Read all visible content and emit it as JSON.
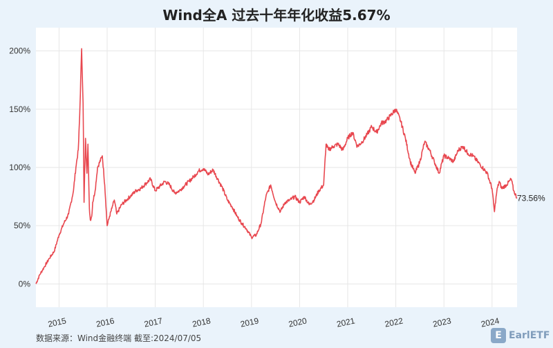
{
  "title": "Wind全A 过去十年年化收益5.67%",
  "footer": "数据来源：Wind金融终端 截至:2024/07/05",
  "logo": {
    "text": "EarlETF",
    "badge": "E"
  },
  "colors": {
    "line": "#e8474f",
    "background": "#eaf3fb",
    "plot": "#ffffff",
    "grid": "#e6e6e6"
  },
  "chart_data": {
    "type": "line",
    "title": "Wind全A 过去十年年化收益5.67%",
    "ylim": [
      -0.2,
      2.2
    ],
    "xlim": [
      2014.52,
      2024.52
    ],
    "y_ticks": [
      0,
      0.5,
      1.0,
      1.5,
      2.0
    ],
    "y_tick_labels": [
      "0%",
      "50%",
      "100%",
      "150%",
      "200%"
    ],
    "x_ticks": [
      2015,
      2016,
      2017,
      2018,
      2019,
      2020,
      2021,
      2022,
      2023,
      2024
    ],
    "x_tick_labels": [
      "2015",
      "2016",
      "2017",
      "2018",
      "2019",
      "2020",
      "2021",
      "2022",
      "2023",
      "2024"
    ],
    "end_label": "73.56%",
    "grid": true,
    "series": [
      {
        "x": [
          2014.52,
          2014.6,
          2014.7,
          2014.8,
          2014.9,
          2015.0,
          2015.1,
          2015.2,
          2015.3,
          2015.35,
          2015.4,
          2015.43,
          2015.45,
          2015.47,
          2015.5,
          2015.52,
          2015.55,
          2015.58,
          2015.6,
          2015.63,
          2015.65,
          2015.68,
          2015.7,
          2015.75,
          2015.8,
          2015.9,
          2015.95,
          2016.0,
          2016.05,
          2016.1,
          2016.15,
          2016.2,
          2016.3,
          2016.4,
          2016.5,
          2016.6,
          2016.7,
          2016.8,
          2016.9,
          2017.0,
          2017.1,
          2017.2,
          2017.3,
          2017.4,
          2017.5,
          2017.6,
          2017.7,
          2017.8,
          2017.9,
          2018.0,
          2018.1,
          2018.2,
          2018.3,
          2018.4,
          2018.5,
          2018.6,
          2018.7,
          2018.8,
          2018.9,
          2019.0,
          2019.1,
          2019.2,
          2019.3,
          2019.4,
          2019.5,
          2019.6,
          2019.7,
          2019.8,
          2019.9,
          2020.0,
          2020.1,
          2020.2,
          2020.3,
          2020.4,
          2020.5,
          2020.55,
          2020.6,
          2020.7,
          2020.8,
          2020.9,
          2021.0,
          2021.1,
          2021.2,
          2021.3,
          2021.4,
          2021.5,
          2021.6,
          2021.7,
          2021.8,
          2021.9,
          2022.0,
          2022.1,
          2022.2,
          2022.3,
          2022.4,
          2022.5,
          2022.6,
          2022.7,
          2022.8,
          2022.9,
          2023.0,
          2023.1,
          2023.2,
          2023.3,
          2023.4,
          2023.5,
          2023.6,
          2023.7,
          2023.8,
          2023.9,
          2024.0,
          2024.05,
          2024.1,
          2024.15,
          2024.2,
          2024.3,
          2024.4,
          2024.45,
          2024.52
        ],
        "y": [
          0.0,
          0.08,
          0.15,
          0.22,
          0.28,
          0.42,
          0.52,
          0.6,
          0.8,
          1.0,
          1.15,
          1.45,
          1.75,
          2.02,
          1.55,
          0.7,
          1.25,
          0.95,
          1.2,
          0.65,
          0.55,
          0.58,
          0.7,
          0.8,
          1.0,
          1.1,
          0.85,
          0.5,
          0.58,
          0.65,
          0.72,
          0.6,
          0.68,
          0.72,
          0.76,
          0.8,
          0.82,
          0.86,
          0.9,
          0.8,
          0.84,
          0.88,
          0.85,
          0.78,
          0.8,
          0.84,
          0.88,
          0.92,
          0.97,
          0.99,
          0.94,
          0.98,
          0.9,
          0.82,
          0.72,
          0.66,
          0.58,
          0.52,
          0.47,
          0.4,
          0.42,
          0.52,
          0.75,
          0.85,
          0.7,
          0.62,
          0.7,
          0.72,
          0.75,
          0.7,
          0.75,
          0.68,
          0.72,
          0.8,
          0.85,
          1.2,
          1.15,
          1.18,
          1.2,
          1.15,
          1.25,
          1.3,
          1.18,
          1.22,
          1.28,
          1.35,
          1.3,
          1.38,
          1.4,
          1.45,
          1.5,
          1.4,
          1.25,
          1.05,
          0.95,
          1.05,
          1.22,
          1.15,
          1.05,
          0.95,
          1.1,
          1.08,
          1.05,
          1.15,
          1.18,
          1.12,
          1.1,
          1.05,
          1.0,
          0.95,
          0.82,
          0.62,
          0.8,
          0.88,
          0.82,
          0.85,
          0.9,
          0.8,
          0.7356
        ]
      }
    ]
  }
}
